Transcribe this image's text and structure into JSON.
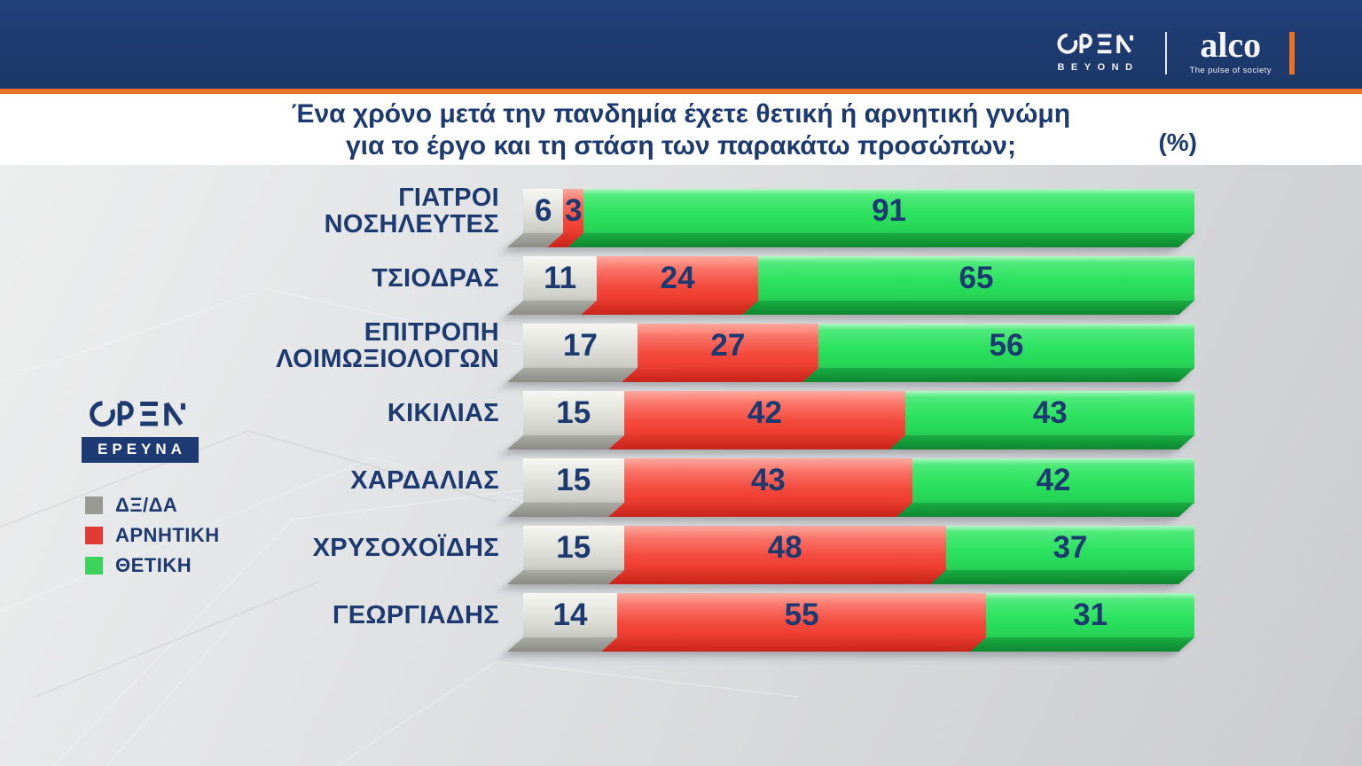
{
  "header": {
    "open_logo_label": "OPEN",
    "open_sub_label": "BEYOND",
    "alco_name": "alco",
    "alco_tagline": "The pulse of society"
  },
  "title": {
    "line1": "Ένα χρόνο μετά την πανδημία έχετε θετική ή αρνητική γνώμη",
    "line2": "για το έργο και τη στάση των παρακάτω προσώπων;",
    "unit_label": "(%)"
  },
  "sidebar": {
    "open_logo_label": "OPEN",
    "badge_label": "ΕΡΕΥΝΑ"
  },
  "colors": {
    "header_navy": "#1e3a6e",
    "accent_orange": "#e87226",
    "text_navy": "#1c3a70",
    "gray_series": "#999995",
    "red_series": "#f4483c",
    "green_series": "#2ce05f"
  },
  "chart_data": {
    "type": "bar",
    "orientation": "horizontal",
    "stacked": true,
    "title": "Ένα χρόνο μετά την πανδημία έχετε θετική ή αρνητική γνώμη για το έργο και τη στάση των παρακάτω προσώπων;",
    "unit": "%",
    "xlim": [
      0,
      100
    ],
    "grid": false,
    "legend_position": "left",
    "categories": [
      "ΓΙΑΤΡΟΙ ΝΟΣΗΛΕΥΤΕΣ",
      "ΤΣΙΟΔΡΑΣ",
      "ΕΠΙΤΡΟΠΗ ΛΟΙΜΩΞΙΟΛΟΓΩΝ",
      "ΚΙΚΙΛΙΑΣ",
      "ΧΑΡΔΑΛΙΑΣ",
      "ΧΡΥΣΟΧΟΪΔΗΣ",
      "ΓΕΩΡΓΙΑΔΗΣ"
    ],
    "categories_display": [
      [
        "ΓΙΑΤΡΟΙ",
        "ΝΟΣΗΛΕΥΤΕΣ"
      ],
      [
        "ΤΣΙΟΔΡΑΣ"
      ],
      [
        "ΕΠΙΤΡΟΠΗ",
        "ΛΟΙΜΩΞΙΟΛΟΓΩΝ"
      ],
      [
        "ΚΙΚΙΛΙΑΣ"
      ],
      [
        "ΧΑΡΔΑΛΙΑΣ"
      ],
      [
        "ΧΡΥΣΟΧΟΪΔΗΣ"
      ],
      [
        "ΓΕΩΡΓΙΑΔΗΣ"
      ]
    ],
    "series": [
      {
        "name": "ΔΞ/ΔΑ",
        "color": "#999995",
        "color_dark": "#8b8b85",
        "values": [
          6,
          11,
          17,
          15,
          15,
          15,
          14
        ]
      },
      {
        "name": "ΑΡΝΗΤΙΚΗ",
        "color": "#e03a35",
        "color_dark": "#c7231a",
        "values": [
          3,
          24,
          27,
          42,
          43,
          48,
          55
        ]
      },
      {
        "name": "ΘΕΤΙΚΗ",
        "color": "#3dd35c",
        "color_dark": "#0e8630",
        "values": [
          91,
          65,
          56,
          43,
          42,
          37,
          31
        ]
      }
    ]
  }
}
